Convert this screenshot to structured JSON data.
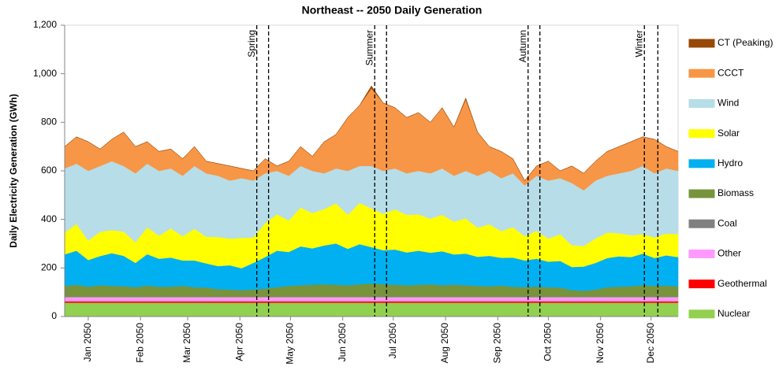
{
  "chart_data": {
    "type": "stacked-area",
    "title": "Northeast -- 2050 Daily Generation",
    "y_label": "Daily Electricity Generation (GWh)",
    "x": [
      1,
      8,
      15,
      22,
      29,
      36,
      43,
      50,
      57,
      64,
      71,
      78,
      85,
      92,
      99,
      106,
      113,
      120,
      127,
      134,
      141,
      148,
      155,
      162,
      169,
      176,
      183,
      190,
      197,
      204,
      211,
      218,
      225,
      232,
      239,
      246,
      253,
      260,
      267,
      274,
      281,
      288,
      295,
      302,
      309,
      316,
      323,
      330,
      337,
      344,
      351,
      358,
      365
    ],
    "xlim": [
      1,
      365
    ],
    "xticks": [
      {
        "value": 15,
        "label": "Jan 2050"
      },
      {
        "value": 46,
        "label": "Feb 2050"
      },
      {
        "value": 74,
        "label": "Mar 2050"
      },
      {
        "value": 105,
        "label": "Apr 2050"
      },
      {
        "value": 135,
        "label": "May 2050"
      },
      {
        "value": 166,
        "label": "Jun 2050"
      },
      {
        "value": 196,
        "label": "Jul 2050"
      },
      {
        "value": 227,
        "label": "Aug 2050"
      },
      {
        "value": 258,
        "label": "Sep 2050"
      },
      {
        "value": 288,
        "label": "Oct 2050"
      },
      {
        "value": 319,
        "label": "Nov 2050"
      },
      {
        "value": 349,
        "label": "Dec 2050"
      }
    ],
    "ylim": [
      0,
      1200
    ],
    "yticks": [
      0,
      200,
      400,
      600,
      800,
      {
        "value": 1000,
        "label": "1,000"
      },
      {
        "value": 1200,
        "label": "1,200"
      }
    ],
    "grid": false,
    "legend": "right",
    "annotations": [
      {
        "label": "Spring",
        "x": [
          115,
          122
        ]
      },
      {
        "label": "Summer",
        "x": [
          185,
          192
        ]
      },
      {
        "label": "Autumn",
        "x": [
          276,
          283
        ]
      },
      {
        "label": "Winter",
        "x": [
          345,
          353
        ]
      }
    ],
    "series": [
      {
        "name": "Nuclear",
        "color": "#92d050",
        "values": [
          57,
          57,
          57,
          57,
          57,
          57,
          57,
          57,
          57,
          57,
          57,
          57,
          57,
          57,
          57,
          57,
          57,
          57,
          57,
          57,
          57,
          57,
          57,
          57,
          57,
          57,
          57,
          57,
          57,
          57,
          57,
          57,
          57,
          57,
          57,
          57,
          57,
          57,
          57,
          57,
          57,
          57,
          57,
          57,
          57,
          57,
          57,
          57,
          57,
          57,
          57,
          57,
          57
        ]
      },
      {
        "name": "Geothermal",
        "color": "#ff0000",
        "values": [
          6,
          6,
          6,
          6,
          6,
          6,
          6,
          6,
          6,
          6,
          6,
          6,
          6,
          6,
          6,
          6,
          6,
          6,
          6,
          6,
          6,
          6,
          6,
          6,
          6,
          6,
          6,
          6,
          6,
          6,
          6,
          6,
          6,
          6,
          6,
          6,
          6,
          6,
          6,
          6,
          6,
          6,
          6,
          6,
          6,
          6,
          6,
          6,
          6,
          6,
          6,
          6,
          6
        ]
      },
      {
        "name": "Other",
        "color": "#ff99ff",
        "values": [
          17,
          17,
          17,
          17,
          17,
          17,
          17,
          17,
          17,
          17,
          17,
          17,
          17,
          17,
          17,
          17,
          17,
          17,
          17,
          17,
          17,
          17,
          17,
          17,
          17,
          17,
          17,
          17,
          17,
          17,
          17,
          17,
          17,
          17,
          17,
          17,
          17,
          17,
          17,
          17,
          17,
          17,
          17,
          17,
          17,
          17,
          17,
          17,
          17,
          17,
          17,
          17,
          17
        ]
      },
      {
        "name": "Coal",
        "color": "#808080",
        "values": [
          1,
          1,
          1,
          1,
          1,
          1,
          1,
          1,
          1,
          1,
          1,
          1,
          1,
          1,
          1,
          1,
          1,
          1,
          1,
          1,
          1,
          1,
          1,
          1,
          1,
          1,
          1,
          1,
          1,
          1,
          1,
          1,
          1,
          1,
          1,
          1,
          1,
          1,
          1,
          1,
          1,
          1,
          1,
          1,
          1,
          1,
          1,
          1,
          1,
          1,
          1,
          1,
          1
        ]
      },
      {
        "name": "Biomass",
        "color": "#77933c",
        "values": [
          45,
          50,
          42,
          48,
          45,
          44,
          40,
          46,
          42,
          42,
          45,
          40,
          38,
          32,
          30,
          28,
          30,
          34,
          40,
          45,
          48,
          50,
          52,
          50,
          48,
          52,
          55,
          52,
          50,
          48,
          50,
          52,
          48,
          50,
          48,
          45,
          44,
          46,
          42,
          40,
          42,
          40,
          38,
          28,
          25,
          30,
          40,
          42,
          44,
          48,
          45,
          46,
          44
        ]
      },
      {
        "name": "Hydro",
        "color": "#00b0f0",
        "values": [
          130,
          140,
          110,
          120,
          135,
          125,
          100,
          130,
          115,
          120,
          105,
          110,
          100,
          95,
          100,
          90,
          110,
          130,
          150,
          140,
          160,
          150,
          160,
          170,
          150,
          165,
          150,
          140,
          145,
          135,
          140,
          130,
          140,
          125,
          130,
          120,
          125,
          115,
          120,
          110,
          115,
          105,
          110,
          95,
          100,
          110,
          120,
          125,
          120,
          130,
          115,
          125,
          120
        ]
      },
      {
        "name": "Solar",
        "color": "#ffff00",
        "values": [
          90,
          110,
          80,
          100,
          95,
          100,
          85,
          110,
          95,
          120,
          100,
          130,
          110,
          120,
          110,
          125,
          105,
          140,
          150,
          130,
          160,
          145,
          150,
          165,
          140,
          170,
          160,
          150,
          165,
          155,
          150,
          140,
          150,
          135,
          145,
          120,
          130,
          110,
          125,
          100,
          115,
          95,
          110,
          90,
          85,
          100,
          105,
          95,
          90,
          80,
          85,
          90,
          95
        ]
      },
      {
        "name": "Wind",
        "color": "#b7dde8",
        "values": [
          264,
          249,
          287,
          271,
          284,
          270,
          284,
          263,
          267,
          247,
          249,
          259,
          261,
          252,
          239,
          246,
          234,
          205,
          179,
          184,
          171,
          174,
          147,
          144,
          181,
          152,
          174,
          177,
          169,
          171,
          179,
          187,
          191,
          189,
          196,
          214,
          220,
          218,
          222,
          209,
          227,
          239,
          231,
          256,
          229,
          239,
          234,
          247,
          265,
          281,
          264,
          268,
          260
        ]
      },
      {
        "name": "CCCT",
        "color": "#f79646",
        "values": [
          90,
          110,
          120,
          70,
          90,
          140,
          110,
          90,
          80,
          80,
          70,
          80,
          50,
          50,
          60,
          40,
          40,
          60,
          20,
          60,
          80,
          60,
          130,
          140,
          220,
          250,
          320,
          280,
          250,
          230,
          240,
          210,
          250,
          200,
          295,
          180,
          100,
          110,
          60,
          20,
          40,
          80,
          30,
          70,
          70,
          80,
          100,
          110,
          120,
          120,
          140,
          90,
          80
        ]
      },
      {
        "name": "CT (Peaking)",
        "color": "#984807",
        "values": [
          0,
          0,
          0,
          0,
          0,
          0,
          0,
          0,
          0,
          0,
          0,
          0,
          0,
          0,
          0,
          0,
          0,
          0,
          0,
          0,
          0,
          0,
          0,
          0,
          0,
          0,
          10,
          0,
          0,
          0,
          0,
          0,
          0,
          0,
          5,
          0,
          0,
          0,
          0,
          0,
          0,
          0,
          0,
          0,
          0,
          0,
          0,
          0,
          0,
          0,
          0,
          0,
          0
        ]
      }
    ]
  }
}
